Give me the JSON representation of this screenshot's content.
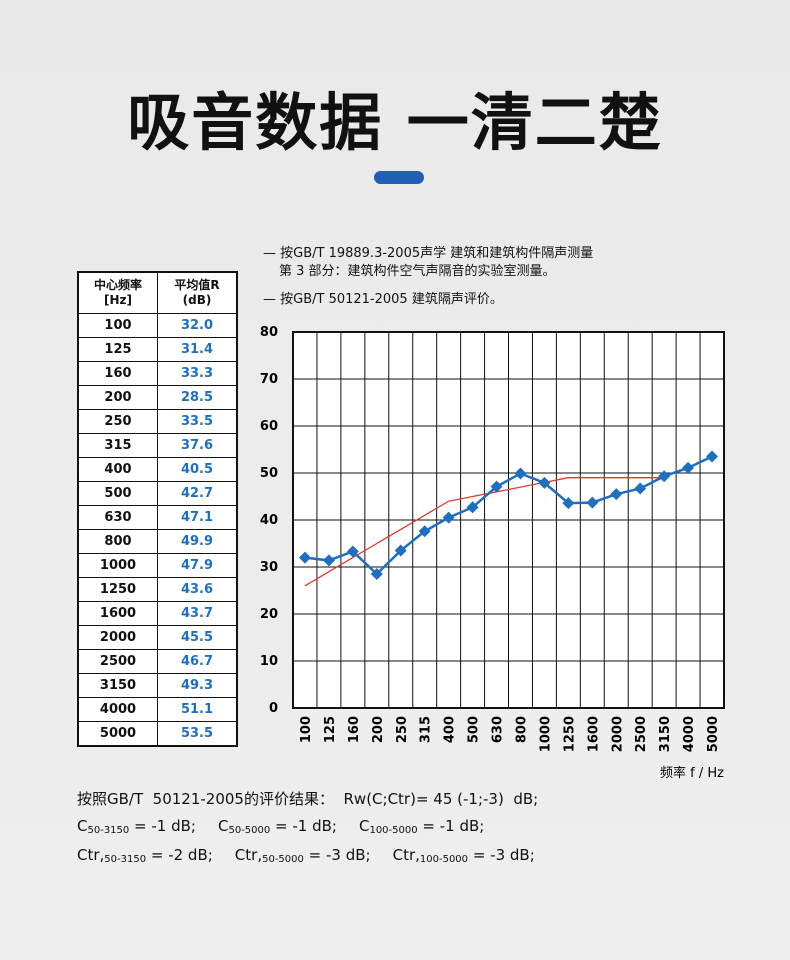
{
  "header": {
    "title": "吸音数据 一清二楚"
  },
  "table": {
    "columns": [
      "中心频率\n[Hz]",
      "平均值R\n(dB)"
    ],
    "rows": [
      [
        "100",
        "32.0"
      ],
      [
        "125",
        "31.4"
      ],
      [
        "160",
        "33.3"
      ],
      [
        "200",
        "28.5"
      ],
      [
        "250",
        "33.5"
      ],
      [
        "315",
        "37.6"
      ],
      [
        "400",
        "40.5"
      ],
      [
        "500",
        "42.7"
      ],
      [
        "630",
        "47.1"
      ],
      [
        "800",
        "49.9"
      ],
      [
        "1000",
        "47.9"
      ],
      [
        "1250",
        "43.6"
      ],
      [
        "1600",
        "43.7"
      ],
      [
        "2000",
        "45.5"
      ],
      [
        "2500",
        "46.7"
      ],
      [
        "3150",
        "49.3"
      ],
      [
        "4000",
        "51.1"
      ],
      [
        "5000",
        "53.5"
      ]
    ]
  },
  "notes": [
    "— 按GB/T 19889.3-2005声学  建筑和建筑构件隔声测量",
    "第 3 部分：建筑构件空气声隔音的实验室测量。",
    "— 按GB/T 50121-2005  建筑隔声评价。"
  ],
  "chart_data": {
    "type": "line",
    "x_label": "频率 f / Hz",
    "categories": [
      "100",
      "125",
      "160",
      "200",
      "250",
      "315",
      "400",
      "500",
      "630",
      "800",
      "1000",
      "1250",
      "1600",
      "2000",
      "2500",
      "3150",
      "4000",
      "5000"
    ],
    "series": [
      {
        "color": "#e03a2f",
        "marker": false,
        "values": [
          26,
          29,
          32,
          35,
          38,
          41,
          44,
          45,
          46,
          47,
          48,
          49,
          49,
          49,
          49,
          49,
          null,
          null
        ]
      },
      {
        "color": "#1f6fc1",
        "marker": true,
        "values": [
          32.0,
          31.4,
          33.3,
          28.5,
          33.5,
          37.6,
          40.5,
          42.7,
          47.1,
          49.9,
          47.9,
          43.6,
          43.7,
          45.5,
          46.7,
          49.3,
          51.1,
          53.5
        ]
      }
    ],
    "ylim": [
      0,
      80
    ],
    "yticks": [
      0,
      10,
      20,
      30,
      40,
      50,
      60,
      70,
      80
    ],
    "grid": true
  },
  "results": {
    "line1": "按照GB/T  50121-2005的评价结果：  Rw(C;Ctr)= 45 (-1;-3)  dB;",
    "line2": [
      {
        "symbol": "C",
        "sub": "50-3150",
        "text": " = -1 dB;"
      },
      {
        "symbol": "C",
        "sub": "50-5000",
        "text": " = -1 dB;"
      },
      {
        "symbol": "C",
        "sub": "100-5000",
        "text": " = -1 dB;"
      }
    ],
    "line3": [
      {
        "symbol": "Ctr,",
        "sub": "50-3150",
        "text": " = -2 dB;"
      },
      {
        "symbol": "Ctr,",
        "sub": "50-5000",
        "text": " = -3 dB;"
      },
      {
        "symbol": "Ctr,",
        "sub": "100-5000",
        "text": " = -3 dB;"
      }
    ]
  }
}
